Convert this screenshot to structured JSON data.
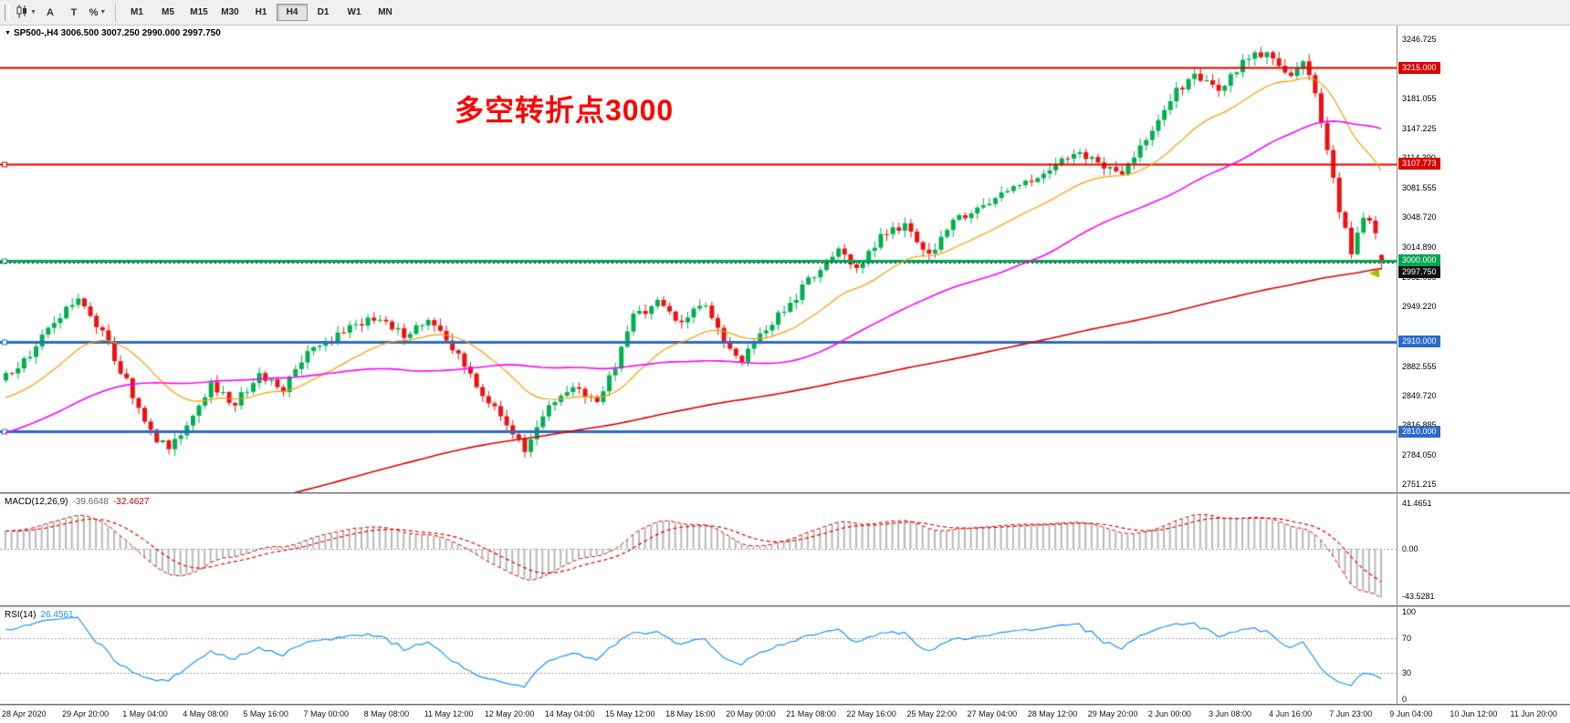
{
  "toolbar": {
    "icons": [
      {
        "name": "chart-type",
        "glyph": "candles",
        "dropdown": true
      },
      {
        "name": "auto-scroll",
        "glyph": "A",
        "dropdown": false
      },
      {
        "name": "templates",
        "glyph": "T",
        "dropdown": false
      },
      {
        "name": "indicators",
        "glyph": "%",
        "dropdown": true
      }
    ],
    "timeframes": [
      "M1",
      "M5",
      "M15",
      "M30",
      "H1",
      "H4",
      "D1",
      "W1",
      "MN"
    ],
    "active_timeframe": "H4"
  },
  "chart_data": {
    "type": "candlestick",
    "symbol": "SP500-",
    "timeframe": "H4",
    "header_text": "SP500-,H4  3006.500 3007.250 2990.000 2997.750",
    "last_candle": {
      "open": 3006.5,
      "high": 3007.25,
      "low": 2990.0,
      "close": 2997.75
    },
    "annotation": {
      "text": "多空转折点3000",
      "color": "#FF0000"
    },
    "price_axis": {
      "range_top": 3262,
      "range_bottom": 2742,
      "grid_labels": [
        "3246.725",
        "3181.055",
        "3147.225",
        "3114.390",
        "3081.555",
        "3048.720",
        "3014.890",
        "2982.055",
        "2949.220",
        "2882.555",
        "2849.720",
        "2816.885",
        "2784.050",
        "2751.215"
      ],
      "tags": [
        {
          "text": "3215.000",
          "bg": "#DD0000",
          "line_style": "solid",
          "line_width": 2,
          "handle": false
        },
        {
          "text": "3107.773",
          "bg": "#DD0000",
          "line_style": "solid",
          "line_width": 2,
          "handle": true
        },
        {
          "text": "3000.000",
          "bg": "#00A650",
          "line_style": "solid",
          "line_width": 3,
          "handle": true
        },
        {
          "text": "2997.750",
          "bg": "#111111",
          "line_style": "dot",
          "line_width": 1,
          "handle": false
        },
        {
          "text": "2910.000",
          "bg": "#2A6BC9",
          "line_style": "solid",
          "line_width": 3,
          "handle": true
        },
        {
          "text": "2810.000",
          "bg": "#2A6BC9",
          "line_style": "solid",
          "line_width": 3,
          "handle": true
        }
      ]
    },
    "time_axis_labels": [
      "28 Apr 2020",
      "29 Apr 20:00",
      "1 May 04:00",
      "4 May 08:00",
      "5 May 16:00",
      "7 May 00:00",
      "8 May 08:00",
      "11 May 12:00",
      "12 May 20:00",
      "14 May 04:00",
      "15 May 12:00",
      "18 May 16:00",
      "20 May 00:00",
      "21 May 08:00",
      "22 May 16:00",
      "25 May 22:00",
      "27 May 04:00",
      "28 May 12:00",
      "29 May 20:00",
      "2 Jun 00:00",
      "3 Jun 08:00",
      "4 Jun 16:00",
      "7 Jun 23:00",
      "9 Jun 04:00",
      "10 Jun 12:00",
      "11 Jun 20:00"
    ],
    "price_anchors": [
      [
        -200,
        2470
      ],
      [
        -170,
        2520
      ],
      [
        -140,
        2565
      ],
      [
        -110,
        2620
      ],
      [
        -80,
        2690
      ],
      [
        -50,
        2755
      ],
      [
        -30,
        2800
      ],
      [
        -15,
        2838
      ],
      [
        -5,
        2858
      ],
      [
        0,
        2872
      ],
      [
        4,
        2895
      ],
      [
        8,
        2935
      ],
      [
        12,
        2955
      ],
      [
        16,
        2920
      ],
      [
        20,
        2865
      ],
      [
        24,
        2810
      ],
      [
        27,
        2788
      ],
      [
        30,
        2820
      ],
      [
        34,
        2860
      ],
      [
        38,
        2842
      ],
      [
        42,
        2872
      ],
      [
        46,
        2856
      ],
      [
        50,
        2898
      ],
      [
        54,
        2912
      ],
      [
        58,
        2930
      ],
      [
        62,
        2938
      ],
      [
        66,
        2918
      ],
      [
        70,
        2932
      ],
      [
        74,
        2902
      ],
      [
        78,
        2862
      ],
      [
        82,
        2825
      ],
      [
        86,
        2792
      ],
      [
        90,
        2838
      ],
      [
        94,
        2858
      ],
      [
        98,
        2846
      ],
      [
        101,
        2882
      ],
      [
        104,
        2938
      ],
      [
        108,
        2952
      ],
      [
        112,
        2932
      ],
      [
        116,
        2952
      ],
      [
        119,
        2912
      ],
      [
        122,
        2888
      ],
      [
        126,
        2926
      ],
      [
        130,
        2952
      ],
      [
        134,
        2986
      ],
      [
        138,
        3012
      ],
      [
        141,
        2988
      ],
      [
        145,
        3028
      ],
      [
        149,
        3038
      ],
      [
        153,
        3006
      ],
      [
        157,
        3044
      ],
      [
        161,
        3058
      ],
      [
        165,
        3072
      ],
      [
        169,
        3088
      ],
      [
        173,
        3102
      ],
      [
        177,
        3122
      ],
      [
        181,
        3108
      ],
      [
        185,
        3098
      ],
      [
        189,
        3138
      ],
      [
        193,
        3182
      ],
      [
        197,
        3205
      ],
      [
        201,
        3192
      ],
      [
        205,
        3222
      ],
      [
        209,
        3233
      ],
      [
        212,
        3205
      ],
      [
        215,
        3218
      ],
      [
        217,
        3186
      ],
      [
        219,
        3128
      ],
      [
        221,
        3058
      ],
      [
        223,
        3012
      ],
      [
        225,
        3052
      ],
      [
        227,
        3028
      ],
      [
        228,
        3006
      ]
    ],
    "colors": {
      "bull": "#00B050",
      "bear": "#EE1111",
      "ma_fast": "#FF9900",
      "ma_mid": "#FF00FF",
      "ma_slow": "#DD0000",
      "macd_hist": "#B8B8B8",
      "macd_signal": "#E00000",
      "rsi_line": "#1E90FF",
      "arrow": "#AABB00"
    }
  },
  "macd": {
    "name": "MACD(12,26,9)",
    "value_main": "-39.6648",
    "value_signal": "-32.4627",
    "axis_labels": [
      "41.4651",
      "0.00",
      "-43.5281"
    ]
  },
  "rsi": {
    "name": "RSI(14)",
    "value": "26.4561",
    "levels": [
      70,
      30
    ],
    "axis_labels": [
      "100",
      "70",
      "30",
      "0"
    ]
  }
}
